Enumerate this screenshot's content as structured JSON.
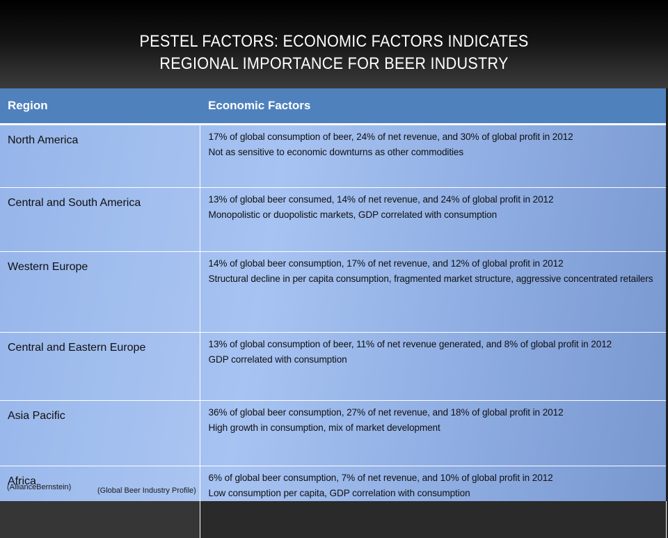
{
  "title": {
    "line1": "PESTEL FACTORS: ECONOMIC FACTORS INDICATES",
    "line2": "REGIONAL IMPORTANCE FOR BEER INDUSTRY"
  },
  "table": {
    "headers": [
      "Region",
      "Economic Factors"
    ],
    "rows": [
      {
        "region": "North America",
        "lines": [
          "17% of global consumption of beer, 24% of net revenue, and 30% of global profit in 2012",
          "Not as sensitive to economic downturns as other commodities"
        ]
      },
      {
        "region": "Central and South America",
        "lines": [
          "13% of global beer consumed, 14% of net revenue, and 24% of global profit in 2012",
          "Monopolistic or duopolistic markets, GDP correlated with consumption"
        ]
      },
      {
        "region": "Western Europe",
        "lines": [
          "14% of global beer consumption, 17% of net revenue, and 12% of global profit in 2012",
          "Structural decline in per capita consumption, fragmented market structure, aggressive concentrated retailers"
        ]
      },
      {
        "region": "Central and Eastern Europe",
        "lines": [
          "13% of global consumption of beer, 11% of net revenue generated, and 8% of global profit in 2012",
          "GDP correlated with consumption"
        ]
      },
      {
        "region": "Asia Pacific",
        "lines": [
          "36% of global beer consumption, 27% of net revenue, and 18% of global profit in 2012",
          "High growth in consumption, mix of market development"
        ]
      },
      {
        "region": "Africa",
        "lines": [
          "6% of global beer consumption, 7% of net revenue, and 10% of global profit in 2012",
          "Low consumption per capita, GDP correlation with consumption"
        ]
      }
    ]
  },
  "citations": {
    "first": "(AllianceBernstein)",
    "second": "(Global Beer Industry Profile)"
  }
}
